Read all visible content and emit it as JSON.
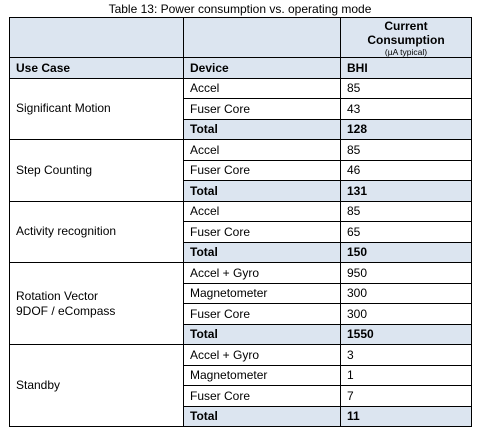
{
  "caption": "Table 13: Power consumption vs. operating mode",
  "header": {
    "current_title_line1": "Current",
    "current_title_line2": "Consumption",
    "current_unit": "(µA typical)",
    "col_use_case": "Use Case",
    "col_device": "Device",
    "col_bhi": "BHI"
  },
  "groups": [
    {
      "use_case": "Significant Motion",
      "rows": [
        {
          "device": "Accel",
          "value": "85"
        },
        {
          "device": "Fuser Core",
          "value": "43"
        }
      ],
      "total_label": "Total",
      "total_value": "128"
    },
    {
      "use_case": "Step Counting",
      "rows": [
        {
          "device": "Accel",
          "value": "85"
        },
        {
          "device": "Fuser Core",
          "value": "46"
        }
      ],
      "total_label": "Total",
      "total_value": "131"
    },
    {
      "use_case": "Activity recognition",
      "rows": [
        {
          "device": "Accel",
          "value": "85"
        },
        {
          "device": "Fuser Core",
          "value": "65"
        }
      ],
      "total_label": "Total",
      "total_value": "150"
    },
    {
      "use_case_line1": "Rotation Vector",
      "use_case_line2": "9DOF / eCompass",
      "rows": [
        {
          "device": "Accel + Gyro",
          "value": "950"
        },
        {
          "device": "Magnetometer",
          "value": "300"
        },
        {
          "device": "Fuser Core",
          "value": "300"
        }
      ],
      "total_label": "Total",
      "total_value": "1550"
    },
    {
      "use_case": "Standby",
      "rows": [
        {
          "device": "Accel + Gyro",
          "value": "3"
        },
        {
          "device": "Magnetometer",
          "value": "1"
        },
        {
          "device": "Fuser Core",
          "value": "7"
        }
      ],
      "total_label": "Total",
      "total_value": "11"
    }
  ]
}
